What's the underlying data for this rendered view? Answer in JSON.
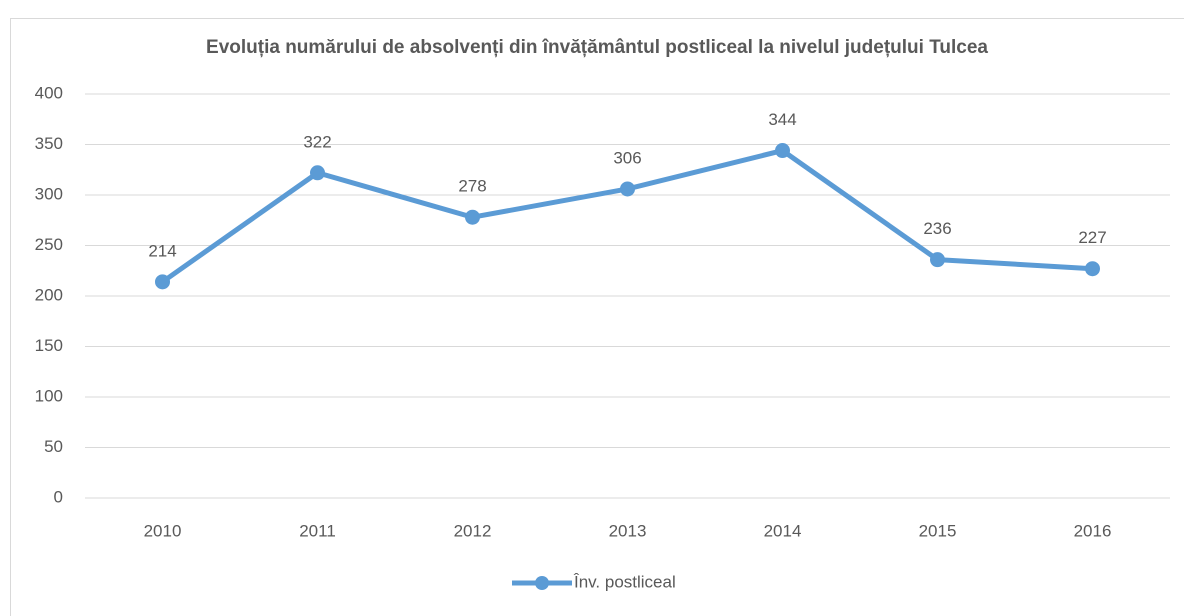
{
  "chart_data": {
    "type": "line",
    "title": "Evoluția numărului de absolvenți din învățământul postliceal la nivelul județului Tulcea",
    "categories": [
      "2010",
      "2011",
      "2012",
      "2013",
      "2014",
      "2015",
      "2016"
    ],
    "series": [
      {
        "name": "Înv. postliceal",
        "color": "#5b9bd5",
        "values": [
          214,
          322,
          278,
          306,
          344,
          236,
          227
        ]
      }
    ],
    "ylim": [
      0,
      400
    ],
    "yticks": [
      0,
      50,
      100,
      150,
      200,
      250,
      300,
      350,
      400
    ],
    "grid": true,
    "legend": "bottom",
    "data_labels": true
  }
}
